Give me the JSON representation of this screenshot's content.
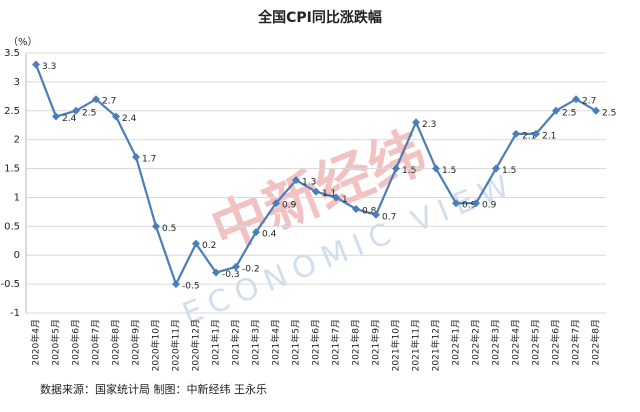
{
  "chart_data": {
    "type": "line",
    "title": "全国CPI同比涨跌幅",
    "y_unit": "（%）",
    "categories": [
      "2020年4月",
      "2020年5月",
      "2020年6月",
      "2020年7月",
      "2020年8月",
      "2020年9月",
      "2020年10月",
      "2020年11月",
      "2020年12月",
      "2021年1月",
      "2021年2月",
      "2021年3月",
      "2021年4月",
      "2021年5月",
      "2021年6月",
      "2021年7月",
      "2021年8月",
      "2021年9月",
      "2021年10月",
      "2021年11月",
      "2021年12月",
      "2022年1月",
      "2022年2月",
      "2022年3月",
      "2022年4月",
      "2022年5月",
      "2022年6月",
      "2022年7月",
      "2022年8月"
    ],
    "values": [
      3.3,
      2.4,
      2.5,
      2.7,
      2.4,
      1.7,
      0.5,
      -0.5,
      0.2,
      -0.3,
      -0.2,
      0.4,
      0.9,
      1.3,
      1.1,
      1,
      0.8,
      0.7,
      1.5,
      2.3,
      1.5,
      0.9,
      0.9,
      1.5,
      2.1,
      2.1,
      2.5,
      2.7,
      2.5
    ],
    "color": "#4a7ebb",
    "ylim": [
      -1,
      3.5
    ],
    "yticks": [
      -1,
      -0.5,
      0,
      0.5,
      1,
      1.5,
      2,
      2.5,
      3,
      3.5
    ],
    "grid": true,
    "watermark": {
      "cn": "中新经纬",
      "en": "ECONOMIC VIEW"
    },
    "source": "数据来源：国家统计局  制图：中新经纬 王永乐"
  }
}
